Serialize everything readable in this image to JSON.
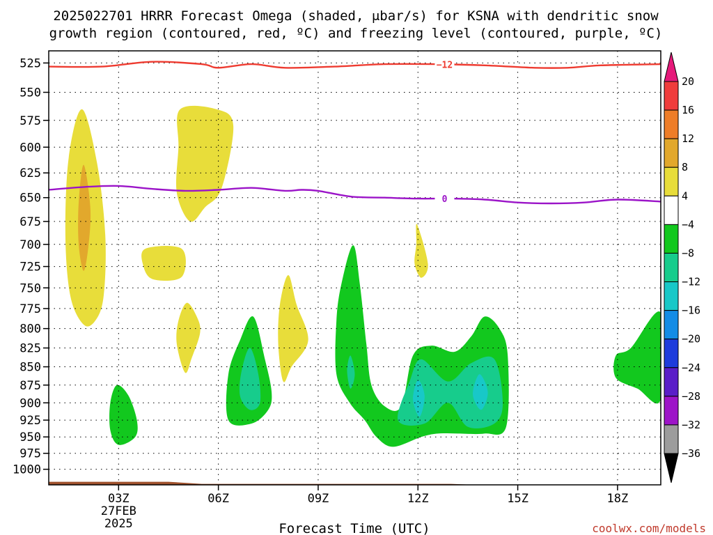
{
  "title": {
    "line1": "2025022701 HRRR Forecast Omega (shaded, μbar/s) for KSNA with dendritic snow",
    "line2": "growth region (contoured, red, ºC) and freezing level (contoured, purple, ºC)"
  },
  "credit": "coolwx.com/models",
  "chart_data": {
    "type": "heatmap",
    "subtype": "time-height cross section",
    "xlabel": "Forecast Time (UTC)",
    "ylabel": "",
    "x_range_hours_utc": [
      0.9,
      19.3
    ],
    "y_range_mb": [
      515,
      1025
    ],
    "y_axis_inverted_log": true,
    "grid": true,
    "x_ticks": [
      {
        "hour": 3,
        "label": "03Z",
        "sub1": "27FEB",
        "sub2": "2025"
      },
      {
        "hour": 6,
        "label": "06Z"
      },
      {
        "hour": 9,
        "label": "09Z"
      },
      {
        "hour": 12,
        "label": "12Z"
      },
      {
        "hour": 15,
        "label": "15Z"
      },
      {
        "hour": 18,
        "label": "18Z"
      }
    ],
    "y_ticks": [
      525,
      550,
      575,
      600,
      625,
      650,
      675,
      700,
      725,
      750,
      775,
      800,
      825,
      850,
      875,
      900,
      925,
      950,
      975,
      1000
    ],
    "colorbar": {
      "unit": "μbar/s",
      "labels": [
        "20",
        "16",
        "12",
        "8",
        "4",
        "−4",
        "−8",
        "−12",
        "−16",
        "−20",
        "−24",
        "−28",
        "−32",
        "−36"
      ],
      "colors": [
        "#e6197a",
        "#f03c3c",
        "#ee7d28",
        "#e2a82c",
        "#e8dd3a",
        "#ffffff",
        "#12c81e",
        "#17cc8c",
        "#18c8c8",
        "#148ce6",
        "#1e3cdc",
        "#5a1ec8",
        "#9d14c8",
        "#9c9c9c",
        "#000000"
      ]
    },
    "lines": [
      {
        "kind": "dendritic growth region",
        "label": "−12",
        "color": "#ee3b30",
        "points": [
          [
            0.9,
            528
          ],
          [
            2.5,
            528
          ],
          [
            4.0,
            524
          ],
          [
            5.5,
            526
          ],
          [
            6.0,
            529
          ],
          [
            7.0,
            526
          ],
          [
            8.0,
            529
          ],
          [
            9.5,
            528
          ],
          [
            11.0,
            526
          ],
          [
            12.5,
            526
          ],
          [
            14.0,
            527
          ],
          [
            15.5,
            529
          ],
          [
            16.5,
            529
          ],
          [
            17.5,
            527
          ],
          [
            19.3,
            526
          ]
        ]
      },
      {
        "kind": "freezing level",
        "label": "0",
        "color": "#9b14c8",
        "points": [
          [
            0.9,
            642
          ],
          [
            2.0,
            639
          ],
          [
            3.0,
            638
          ],
          [
            4.0,
            641
          ],
          [
            5.0,
            643
          ],
          [
            6.0,
            642
          ],
          [
            7.0,
            640
          ],
          [
            8.0,
            643
          ],
          [
            8.5,
            642
          ],
          [
            9.0,
            643
          ],
          [
            10.0,
            649
          ],
          [
            11.0,
            650
          ],
          [
            12.0,
            651
          ],
          [
            13.0,
            651
          ],
          [
            14.0,
            652
          ],
          [
            15.0,
            655
          ],
          [
            16.0,
            656
          ],
          [
            17.0,
            655
          ],
          [
            18.0,
            652
          ],
          [
            19.3,
            654
          ]
        ]
      }
    ],
    "shaded_regions": [
      {
        "value_range": "4 to 8",
        "color": "#e8dd3a",
        "points": [
          [
            1.9,
            565
          ],
          [
            2.35,
            615
          ],
          [
            2.6,
            690
          ],
          [
            2.55,
            760
          ],
          [
            2.3,
            790
          ],
          [
            1.95,
            795
          ],
          [
            1.55,
            760
          ],
          [
            1.4,
            690
          ],
          [
            1.5,
            610
          ]
        ]
      },
      {
        "value_range": "8 to 12",
        "color": "#e2a82c",
        "points": [
          [
            1.95,
            617
          ],
          [
            2.15,
            660
          ],
          [
            2.1,
            700
          ],
          [
            1.95,
            730
          ],
          [
            1.8,
            700
          ],
          [
            1.8,
            655
          ]
        ]
      },
      {
        "value_range": "4 to 8",
        "color": "#e8dd3a",
        "points": [
          [
            4.85,
            565
          ],
          [
            5.95,
            565
          ],
          [
            6.45,
            580
          ],
          [
            6.1,
            640
          ],
          [
            5.6,
            660
          ],
          [
            5.15,
            675
          ],
          [
            4.75,
            645
          ],
          [
            4.8,
            600
          ]
        ]
      },
      {
        "value_range": "4 to 8",
        "color": "#e8dd3a",
        "points": [
          [
            3.8,
            705
          ],
          [
            4.9,
            705
          ],
          [
            4.9,
            737
          ],
          [
            4.05,
            740
          ],
          [
            3.75,
            725
          ]
        ]
      },
      {
        "value_range": "4 to 8",
        "color": "#e8dd3a",
        "points": [
          [
            5.05,
            768
          ],
          [
            5.35,
            785
          ],
          [
            5.45,
            805
          ],
          [
            5.2,
            838
          ],
          [
            5.0,
            858
          ],
          [
            4.75,
            820
          ],
          [
            4.8,
            790
          ]
        ]
      },
      {
        "value_range": "4 to 8",
        "color": "#e8dd3a",
        "points": [
          [
            8.1,
            735
          ],
          [
            8.35,
            770
          ],
          [
            8.7,
            815
          ],
          [
            8.2,
            850
          ],
          [
            7.95,
            870
          ],
          [
            7.8,
            820
          ],
          [
            7.85,
            770
          ]
        ]
      },
      {
        "value_range": "4 to 8",
        "color": "#e8dd3a",
        "points": [
          [
            11.97,
            678
          ],
          [
            12.3,
            722
          ],
          [
            12.1,
            738
          ],
          [
            11.9,
            722
          ],
          [
            11.95,
            700
          ]
        ]
      },
      {
        "value_range": "-4 to -8",
        "color": "#12c81e",
        "points": [
          [
            7.05,
            785
          ],
          [
            7.4,
            840
          ],
          [
            7.6,
            885
          ],
          [
            7.5,
            910
          ],
          [
            7.0,
            930
          ],
          [
            6.3,
            925
          ],
          [
            6.3,
            860
          ],
          [
            6.65,
            815
          ]
        ]
      },
      {
        "value_range": "-8 to -12",
        "color": "#17cc8c",
        "points": [
          [
            6.95,
            825
          ],
          [
            7.2,
            860
          ],
          [
            7.25,
            900
          ],
          [
            6.95,
            910
          ],
          [
            6.65,
            890
          ],
          [
            6.7,
            855
          ]
        ]
      },
      {
        "value_range": "-4 to -8",
        "color": "#12c81e",
        "points": [
          [
            2.95,
            875
          ],
          [
            3.3,
            890
          ],
          [
            3.55,
            925
          ],
          [
            3.5,
            950
          ],
          [
            3.0,
            962
          ],
          [
            2.75,
            940
          ],
          [
            2.75,
            900
          ]
        ]
      },
      {
        "value_range": "-4 to -8",
        "color": "#12c81e",
        "points": [
          [
            10.05,
            701
          ],
          [
            10.25,
            745
          ],
          [
            10.45,
            820
          ],
          [
            10.6,
            875
          ],
          [
            11.0,
            905
          ],
          [
            11.5,
            905
          ],
          [
            11.85,
            835
          ],
          [
            12.4,
            822
          ],
          [
            13.1,
            830
          ],
          [
            13.6,
            810
          ],
          [
            14.0,
            785
          ],
          [
            14.45,
            800
          ],
          [
            14.7,
            835
          ],
          [
            14.65,
            935
          ],
          [
            14.0,
            945
          ],
          [
            13.2,
            945
          ],
          [
            12.6,
            945
          ],
          [
            12.1,
            950
          ],
          [
            11.25,
            965
          ],
          [
            10.75,
            950
          ],
          [
            10.4,
            925
          ],
          [
            9.95,
            900
          ],
          [
            9.55,
            860
          ],
          [
            9.55,
            790
          ],
          [
            9.7,
            745
          ]
        ]
      },
      {
        "value_range": "-8 to -12",
        "color": "#17cc8c",
        "points": [
          [
            12.1,
            840
          ],
          [
            12.9,
            870
          ],
          [
            13.6,
            845
          ],
          [
            14.3,
            840
          ],
          [
            14.55,
            900
          ],
          [
            14.3,
            930
          ],
          [
            13.5,
            935
          ],
          [
            12.9,
            900
          ],
          [
            12.2,
            930
          ],
          [
            11.4,
            925
          ],
          [
            11.75,
            870
          ]
        ]
      },
      {
        "value_range": "-8 to -12",
        "color": "#17cc8c",
        "points": [
          [
            9.97,
            835
          ],
          [
            10.1,
            860
          ],
          [
            9.97,
            880
          ],
          [
            9.87,
            855
          ]
        ]
      },
      {
        "value_range": "-12 to -16",
        "color": "#18c8c8",
        "points": [
          [
            12.0,
            868
          ],
          [
            12.2,
            890
          ],
          [
            12.05,
            920
          ],
          [
            11.85,
            895
          ]
        ]
      },
      {
        "value_range": "-12 to -16",
        "color": "#18c8c8",
        "points": [
          [
            13.85,
            860
          ],
          [
            14.1,
            885
          ],
          [
            13.9,
            910
          ],
          [
            13.65,
            888
          ]
        ]
      },
      {
        "value_range": "-4 to -8",
        "color": "#12c81e",
        "points": [
          [
            19.3,
            780
          ],
          [
            19.3,
            895
          ],
          [
            18.6,
            880
          ],
          [
            17.95,
            865
          ],
          [
            17.95,
            835
          ],
          [
            18.4,
            825
          ]
        ]
      }
    ],
    "terrain": {
      "color": "#a0522d",
      "top_mb_approx": 1020
    }
  }
}
